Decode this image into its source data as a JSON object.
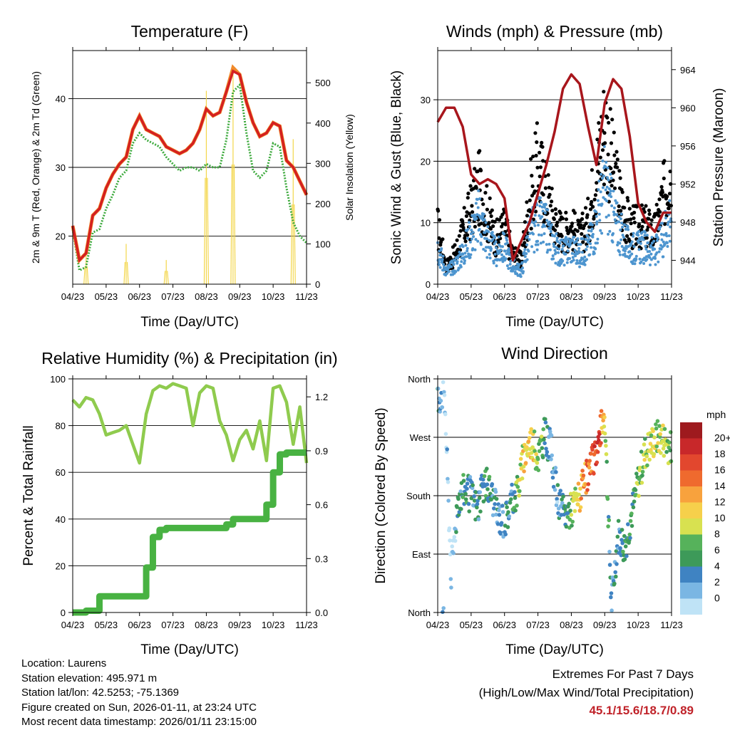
{
  "x_ticks": [
    "04/23",
    "05/23",
    "06/23",
    "07/23",
    "08/23",
    "09/23",
    "10/23",
    "11/23"
  ],
  "xlabel": "Time (Day/UTC)",
  "colors": {
    "temp2m": "#d42020",
    "temp9m": "#f08a2a",
    "dewpoint": "#3daa3d",
    "solar": "#f3d64a",
    "wind": "#4d95cf",
    "gust": "#000000",
    "pressure": "#a8161c",
    "rh": "#8fcb4e",
    "precip": "#48b242",
    "grid": "#000000",
    "extremes": "#c0232a"
  },
  "charts": {
    "temperature": {
      "title": "Temperature (F)",
      "ylabel_left": "2m & 9m T (Red, Orange) & 2m Td (Green)",
      "ylabel_right": "Solar Insolation (Yellow)",
      "y_left_ticks": [
        "20",
        "30",
        "40"
      ],
      "y_right_ticks": [
        "0",
        "100",
        "200",
        "300",
        "400",
        "500"
      ]
    },
    "winds": {
      "title": "Winds (mph) & Pressure (mb)",
      "ylabel_left": "Sonic Wind & Gust (Blue, Black)",
      "ylabel_right": "Station Pressure (Maroon)",
      "y_left_ticks": [
        "0",
        "10",
        "20",
        "30"
      ],
      "y_right_ticks": [
        "944",
        "948",
        "952",
        "956",
        "960",
        "964"
      ]
    },
    "humidity": {
      "title": "Relative Humidity (%) & Precipitation (in)",
      "ylabel_left": "Percent & Total Rainfall",
      "y_left_ticks": [
        "0",
        "20",
        "40",
        "60",
        "80",
        "100"
      ],
      "y_right_ticks": [
        "0.0",
        "0.3",
        "0.6",
        "0.9",
        "1.2"
      ]
    },
    "direction": {
      "title": "Wind Direction",
      "ylabel_left": "Direction (Colored By Speed)",
      "y_left_ticks": [
        "North",
        "East",
        "South",
        "West",
        "North"
      ],
      "legend_title": "mph",
      "legend_labels": [
        "20+",
        "18",
        "16",
        "14",
        "12",
        "10",
        "8",
        "6",
        "4",
        "2",
        "0"
      ],
      "legend_colors": [
        "#9e1a1e",
        "#c8282a",
        "#e2472e",
        "#ef6a2e",
        "#f8a23d",
        "#f6d04b",
        "#d8e150",
        "#56b25b",
        "#3d9a59",
        "#3f83c2",
        "#7ab6e3",
        "#bfe3f6"
      ]
    }
  },
  "chart_data": [
    {
      "type": "line",
      "title": "Temperature (F)",
      "x": [
        0,
        0.2,
        0.4,
        0.6,
        0.8,
        1.0,
        1.2,
        1.4,
        1.6,
        1.8,
        2.0,
        2.2,
        2.4,
        2.6,
        2.8,
        3.0,
        3.2,
        3.4,
        3.6,
        3.8,
        4.0,
        4.2,
        4.4,
        4.6,
        4.8,
        5.0,
        5.2,
        5.4,
        5.6,
        5.8,
        6.0,
        6.2,
        6.4,
        6.6,
        6.8,
        7.0
      ],
      "series": [
        {
          "name": "2m T",
          "values": [
            21.5,
            16.5,
            17.5,
            23.0,
            24.0,
            27.0,
            29.0,
            30.5,
            31.5,
            35.5,
            37.5,
            35.5,
            35.0,
            34.5,
            33.0,
            32.5,
            32.0,
            32.5,
            33.5,
            35.5,
            38.5,
            37.5,
            38.0,
            41.0,
            44.0,
            43.5,
            39.5,
            36.5,
            34.5,
            35.0,
            36.5,
            36.0,
            31.0,
            30.0,
            28.0,
            26.0
          ]
        },
        {
          "name": "9m T",
          "values": [
            21.5,
            16.5,
            17.5,
            23.0,
            24.0,
            27.0,
            29.0,
            30.5,
            31.5,
            35.5,
            37.5,
            35.5,
            35.0,
            34.5,
            33.0,
            32.5,
            32.0,
            32.5,
            33.5,
            35.5,
            38.5,
            37.5,
            38.0,
            41.0,
            44.5,
            43.5,
            39.5,
            36.5,
            34.5,
            35.0,
            36.5,
            36.0,
            31.0,
            30.0,
            28.0,
            26.0
          ]
        },
        {
          "name": "2m Td",
          "values": [
            21.0,
            15.0,
            15.5,
            20.5,
            21.0,
            24.0,
            26.0,
            28.5,
            29.5,
            33.5,
            35.0,
            34.0,
            33.5,
            33.0,
            31.5,
            30.5,
            29.5,
            30.0,
            30.0,
            29.5,
            30.5,
            30.0,
            30.0,
            34.0,
            41.0,
            42.0,
            35.0,
            29.5,
            28.5,
            29.5,
            33.5,
            33.0,
            27.0,
            22.0,
            20.0,
            19.0
          ]
        },
        {
          "name": "Solar Insolation",
          "values": [
            0,
            0,
            80,
            0,
            0,
            0,
            0,
            0,
            100,
            0,
            0,
            0,
            0,
            0,
            60,
            0,
            0,
            0,
            0,
            0,
            480,
            0,
            0,
            0,
            540,
            0,
            0,
            0,
            0,
            0,
            0,
            0,
            0,
            360,
            0,
            0
          ]
        }
      ],
      "xlabel": "Time (Day/UTC)",
      "ylabel": "2m & 9m T (Red, Orange) & 2m Td (Green)",
      "ylim": [
        13,
        47
      ],
      "y2label": "Solar Insolation (Yellow)",
      "y2lim": [
        0,
        580
      ]
    },
    {
      "type": "scatter",
      "title": "Winds (mph) & Pressure (mb)",
      "x": [
        0,
        0.25,
        0.5,
        0.75,
        1.0,
        1.25,
        1.5,
        1.75,
        2.0,
        2.25,
        2.5,
        2.75,
        3.0,
        3.25,
        3.5,
        3.75,
        4.0,
        4.25,
        4.5,
        4.75,
        5.0,
        5.25,
        5.5,
        5.75,
        6.0,
        6.25,
        6.5,
        6.75,
        7.0
      ],
      "series": [
        {
          "name": "Pressure",
          "values": [
            958.5,
            960.0,
            960.0,
            958.0,
            953.0,
            952.0,
            952.5,
            952.0,
            950.5,
            944.0,
            946.0,
            948.0,
            951.0,
            954.0,
            957.5,
            962.0,
            963.5,
            962.5,
            958.0,
            954.0,
            960.5,
            963.0,
            962.0,
            957.0,
            950.0,
            948.0,
            947.0,
            949.0,
            949.0
          ]
        },
        {
          "name": "Sonic Wind",
          "values": [
            6,
            2,
            3,
            5,
            8,
            11,
            7,
            5,
            6,
            3,
            2,
            8,
            10,
            9,
            6,
            5,
            6,
            5,
            6,
            10,
            16,
            11,
            8,
            6,
            6,
            6,
            5,
            8,
            12
          ]
        },
        {
          "name": "Gust",
          "values": [
            10,
            3,
            5,
            9,
            13,
            17,
            12,
            8,
            10,
            5,
            4,
            15,
            21,
            16,
            11,
            9,
            10,
            8,
            11,
            20,
            28,
            20,
            14,
            10,
            10,
            10,
            9,
            15,
            22
          ]
        }
      ],
      "xlabel": "Time (Day/UTC)",
      "ylabel": "Sonic Wind & Gust (Blue, Black)",
      "ylim": [
        0,
        38
      ],
      "y2label": "Station Pressure (Maroon)",
      "y2lim": [
        941.5,
        966
      ]
    },
    {
      "type": "line",
      "title": "Relative Humidity (%) & Precipitation (in)",
      "x": [
        0,
        0.2,
        0.4,
        0.6,
        0.8,
        1.0,
        1.2,
        1.4,
        1.6,
        1.8,
        2.0,
        2.2,
        2.4,
        2.6,
        2.8,
        3.0,
        3.2,
        3.4,
        3.6,
        3.8,
        4.0,
        4.2,
        4.4,
        4.6,
        4.8,
        5.0,
        5.2,
        5.4,
        5.6,
        5.8,
        6.0,
        6.2,
        6.4,
        6.6,
        6.8,
        7.0
      ],
      "series": [
        {
          "name": "Relative Humidity",
          "values": [
            91,
            88,
            92,
            91,
            85,
            76,
            77,
            78,
            80,
            72,
            64,
            85,
            95,
            97,
            96,
            98,
            97,
            96,
            80,
            94,
            97,
            96,
            82,
            76,
            65,
            74,
            78,
            70,
            82,
            65,
            96,
            97,
            90,
            72,
            88,
            64
          ]
        },
        {
          "name": "Total Precipitation",
          "values": [
            0.0,
            0.0,
            0.01,
            0.01,
            0.09,
            0.09,
            0.09,
            0.09,
            0.09,
            0.09,
            0.09,
            0.25,
            0.42,
            0.46,
            0.47,
            0.47,
            0.47,
            0.47,
            0.47,
            0.47,
            0.47,
            0.47,
            0.47,
            0.49,
            0.52,
            0.52,
            0.52,
            0.52,
            0.52,
            0.6,
            0.78,
            0.88,
            0.89,
            0.89,
            0.89,
            0.89
          ]
        }
      ],
      "xlabel": "Time (Day/UTC)",
      "ylabel": "Percent & Total Rainfall",
      "ylim": [
        0,
        100
      ],
      "y2lim": [
        0.0,
        1.3
      ]
    },
    {
      "type": "scatter",
      "title": "Wind Direction",
      "x": [
        0,
        0.2,
        0.4,
        0.6,
        0.8,
        1.0,
        1.2,
        1.4,
        1.6,
        1.8,
        2.0,
        2.2,
        2.4,
        2.6,
        2.8,
        3.0,
        3.2,
        3.4,
        3.6,
        3.8,
        4.0,
        4.2,
        4.4,
        4.6,
        4.8,
        5.0,
        5.2,
        5.4,
        5.6,
        5.8,
        6.0,
        6.2,
        6.4,
        6.6,
        6.8,
        7.0
      ],
      "series": [
        {
          "name": "Direction (deg)",
          "values": [
            330,
            345,
            60,
            175,
            190,
            180,
            160,
            200,
            185,
            150,
            140,
            170,
            190,
            245,
            265,
            240,
            275,
            250,
            170,
            150,
            160,
            175,
            200,
            225,
            260,
            310,
            10,
            120,
            100,
            150,
            200,
            245,
            260,
            270,
            265,
            250
          ]
        },
        {
          "name": "Speed (mph)",
          "values": [
            3,
            2,
            1,
            4,
            6,
            5,
            4,
            6,
            5,
            3,
            3,
            5,
            9,
            11,
            12,
            8,
            6,
            3,
            3,
            5,
            8,
            12,
            14,
            17,
            19,
            10,
            3,
            4,
            5,
            6,
            8,
            9,
            11,
            10,
            9,
            8
          ]
        }
      ],
      "xlabel": "Time (Day/UTC)",
      "ylabel": "Direction (Colored By Speed)",
      "ylim": [
        0,
        360
      ]
    }
  ],
  "info": {
    "location": "Location: Laurens",
    "elevation": "Station elevation: 495.971 m",
    "latlon": "Station lat/lon: 42.5253; -75.1369",
    "created": "Figure created on Sun, 2026-01-11, at 23:24 UTC",
    "recent": "Most recent data timestamp: 2026/01/11 23:15:00"
  },
  "extremes": {
    "heading": "Extremes For Past 7 Days",
    "subheading": "(High/Low/Max Wind/Total Precipitation)",
    "values": "45.1/15.6/18.7/0.89"
  }
}
